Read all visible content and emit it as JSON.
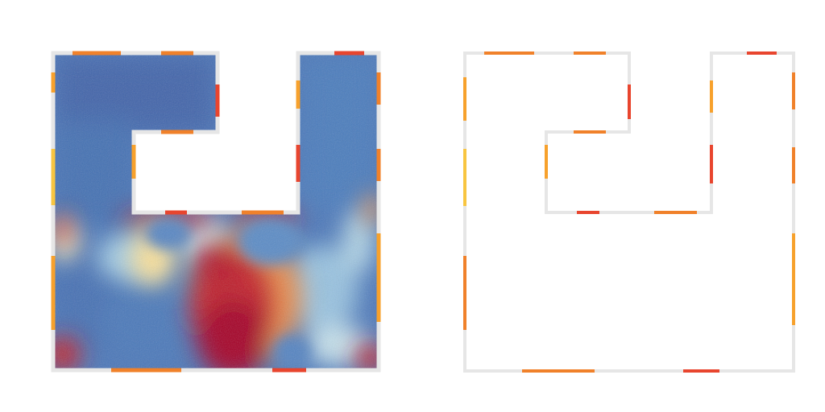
{
  "colors": {
    "background": "#ffffff",
    "wall": "#e6e6e6",
    "heat_cold_deep": "#3f63aa",
    "heat_cold": "#4f7fc0",
    "heat_cold_light": "#86b4dc",
    "heat_mid": "#e8f4f2",
    "heat_warm": "#fde29a",
    "heat_orange": "#f29650",
    "heat_hot": "#c6222c",
    "heat_hottest": "#a50026",
    "opening_red": "#e8452e",
    "opening_orange": "#f0812a",
    "opening_amber": "#f7a12c",
    "opening_yellow": "#f8c540"
  },
  "panels": [
    {
      "name": "heatmap-floorplan",
      "shape": "u-shaped room with rectangular notch at top center",
      "fill": "heatmap"
    },
    {
      "name": "outline-floorplan",
      "shape": "u-shaped room with rectangular notch at top center",
      "fill": "none"
    }
  ]
}
